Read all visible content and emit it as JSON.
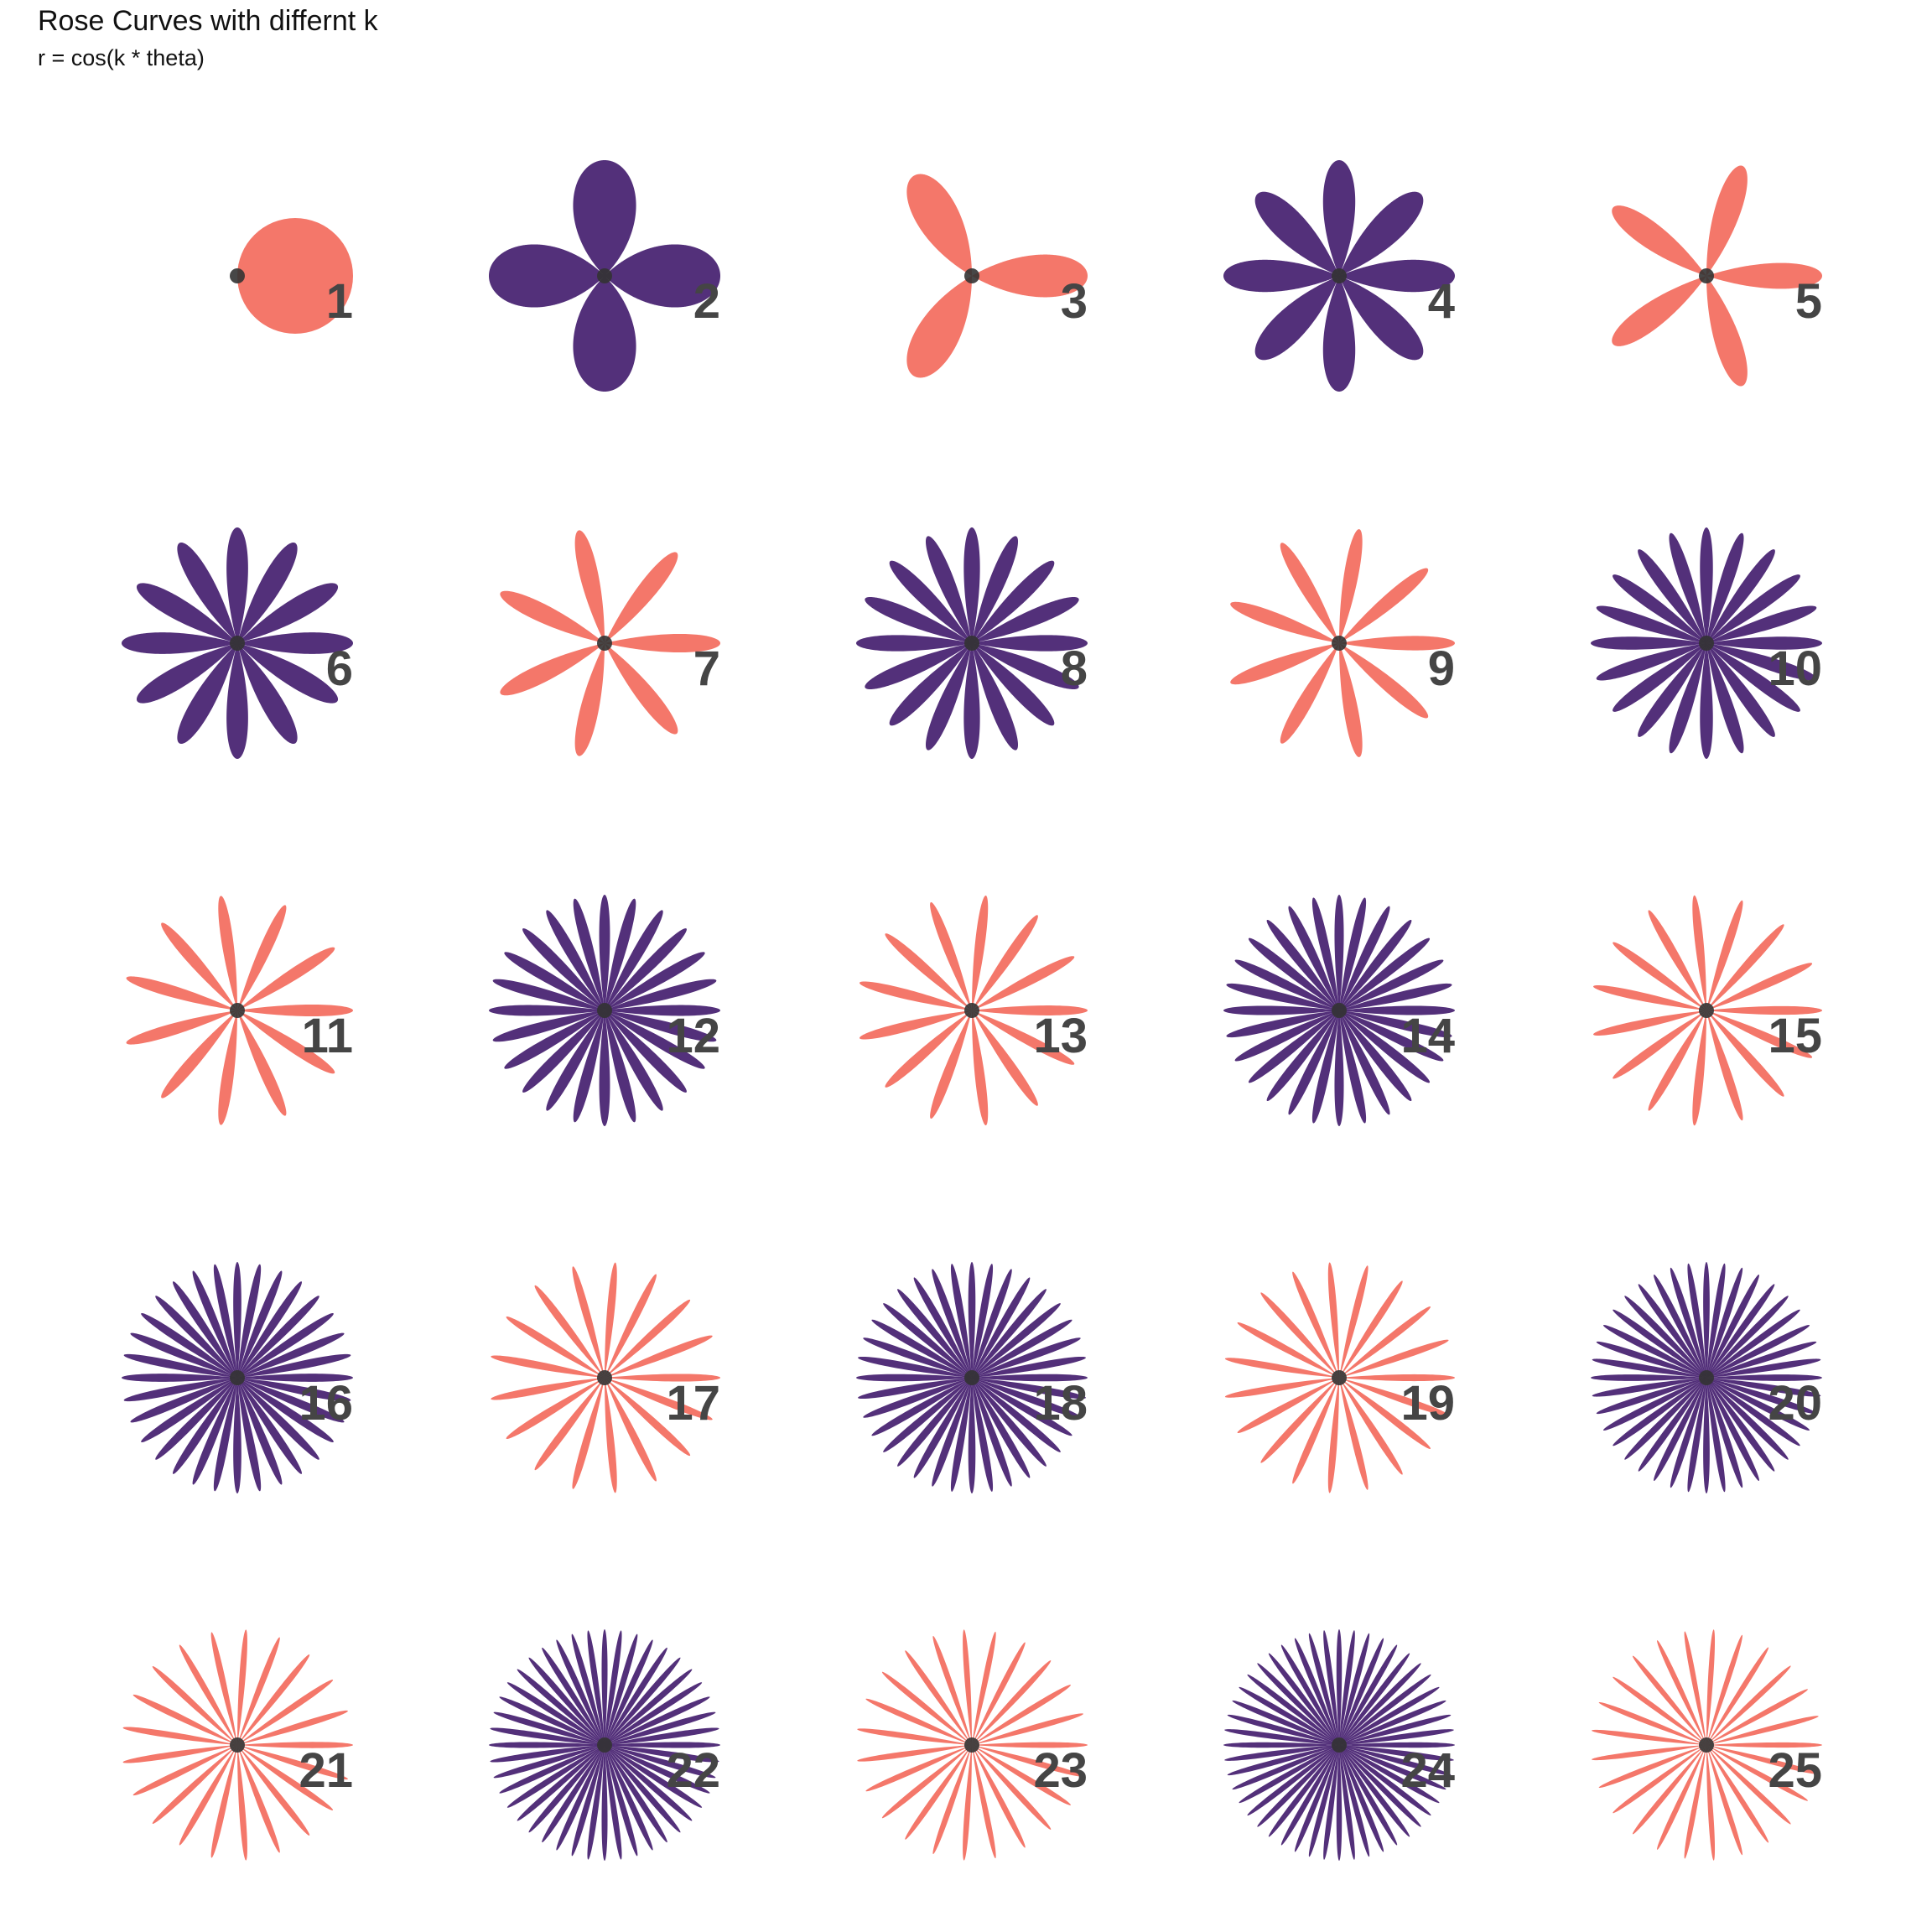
{
  "chart_data": {
    "type": "scatter",
    "title": "Rose Curves with differnt k",
    "subtitle": "r = cos(k * theta)",
    "equation": "r = cos(k * theta)",
    "grid": false,
    "layout_grid": {
      "rows": 5,
      "cols": 5
    },
    "colors": {
      "odd": "#F4776A",
      "even": "#53307A",
      "center_point": "#333333",
      "label": "#454545"
    },
    "panels": [
      {
        "k": 1,
        "label": "1",
        "petals": 1,
        "parity": "odd"
      },
      {
        "k": 2,
        "label": "2",
        "petals": 4,
        "parity": "even"
      },
      {
        "k": 3,
        "label": "3",
        "petals": 3,
        "parity": "odd"
      },
      {
        "k": 4,
        "label": "4",
        "petals": 8,
        "parity": "even"
      },
      {
        "k": 5,
        "label": "5",
        "petals": 5,
        "parity": "odd"
      },
      {
        "k": 6,
        "label": "6",
        "petals": 12,
        "parity": "even"
      },
      {
        "k": 7,
        "label": "7",
        "petals": 7,
        "parity": "odd"
      },
      {
        "k": 8,
        "label": "8",
        "petals": 16,
        "parity": "even"
      },
      {
        "k": 9,
        "label": "9",
        "petals": 9,
        "parity": "odd"
      },
      {
        "k": 10,
        "label": "10",
        "petals": 20,
        "parity": "even"
      },
      {
        "k": 11,
        "label": "11",
        "petals": 11,
        "parity": "odd"
      },
      {
        "k": 12,
        "label": "12",
        "petals": 24,
        "parity": "even"
      },
      {
        "k": 13,
        "label": "13",
        "petals": 13,
        "parity": "odd"
      },
      {
        "k": 14,
        "label": "14",
        "petals": 28,
        "parity": "even"
      },
      {
        "k": 15,
        "label": "15",
        "petals": 15,
        "parity": "odd"
      },
      {
        "k": 16,
        "label": "16",
        "petals": 32,
        "parity": "even"
      },
      {
        "k": 17,
        "label": "17",
        "petals": 17,
        "parity": "odd"
      },
      {
        "k": 18,
        "label": "18",
        "petals": 36,
        "parity": "even"
      },
      {
        "k": 19,
        "label": "19",
        "petals": 19,
        "parity": "odd"
      },
      {
        "k": 20,
        "label": "20",
        "petals": 40,
        "parity": "even"
      },
      {
        "k": 21,
        "label": "21",
        "petals": 21,
        "parity": "odd"
      },
      {
        "k": 22,
        "label": "22",
        "petals": 44,
        "parity": "even"
      },
      {
        "k": 23,
        "label": "23",
        "petals": 23,
        "parity": "odd"
      },
      {
        "k": 24,
        "label": "24",
        "petals": 48,
        "parity": "even"
      },
      {
        "k": 25,
        "label": "25",
        "petals": 25,
        "parity": "odd"
      }
    ]
  }
}
